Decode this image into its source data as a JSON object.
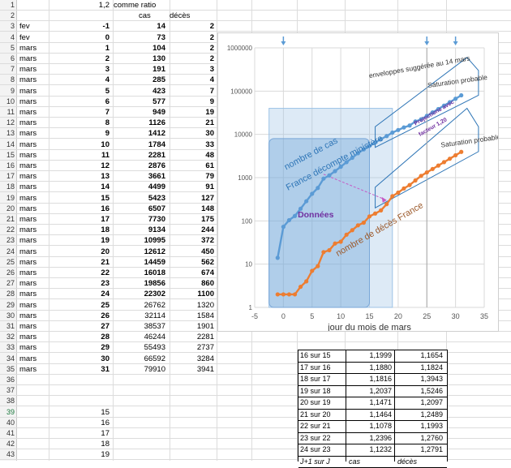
{
  "sheet": {
    "header_row": {
      "ratio_value": "1,2",
      "ratio_label": "comme ratio"
    },
    "col_headers": {
      "cas": "cas",
      "deces": "décès"
    },
    "rows": [
      {
        "month": "fev",
        "day": "-1",
        "cas": "14",
        "deces": "2"
      },
      {
        "month": "fev",
        "day": "0",
        "cas": "73",
        "deces": "2"
      },
      {
        "month": "mars",
        "day": "1",
        "cas": "104",
        "deces": "2"
      },
      {
        "month": "mars",
        "day": "2",
        "cas": "130",
        "deces": "2"
      },
      {
        "month": "mars",
        "day": "3",
        "cas": "191",
        "deces": "3"
      },
      {
        "month": "mars",
        "day": "4",
        "cas": "285",
        "deces": "4"
      },
      {
        "month": "mars",
        "day": "5",
        "cas": "423",
        "deces": "7"
      },
      {
        "month": "mars",
        "day": "6",
        "cas": "577",
        "deces": "9"
      },
      {
        "month": "mars",
        "day": "7",
        "cas": "949",
        "deces": "19"
      },
      {
        "month": "mars",
        "day": "8",
        "cas": "1126",
        "deces": "21"
      },
      {
        "month": "mars",
        "day": "9",
        "cas": "1412",
        "deces": "30"
      },
      {
        "month": "mars",
        "day": "10",
        "cas": "1784",
        "deces": "33"
      },
      {
        "month": "mars",
        "day": "11",
        "cas": "2281",
        "deces": "48"
      },
      {
        "month": "mars",
        "day": "12",
        "cas": "2876",
        "deces": "61"
      },
      {
        "month": "mars",
        "day": "13",
        "cas": "3661",
        "deces": "79"
      },
      {
        "month": "mars",
        "day": "14",
        "cas": "4499",
        "deces": "91"
      },
      {
        "month": "mars",
        "day": "15",
        "cas": "5423",
        "deces": "127"
      },
      {
        "month": "mars",
        "day": "16",
        "cas": "6507",
        "deces": "148"
      },
      {
        "month": "mars",
        "day": "17",
        "cas": "7730",
        "deces": "175"
      },
      {
        "month": "mars",
        "day": "18",
        "cas": "9134",
        "deces": "244"
      },
      {
        "month": "mars",
        "day": "19",
        "cas": "10995",
        "deces": "372"
      },
      {
        "month": "mars",
        "day": "20",
        "cas": "12612",
        "deces": "450"
      },
      {
        "month": "mars",
        "day": "21",
        "cas": "14459",
        "deces": "562"
      },
      {
        "month": "mars",
        "day": "22",
        "cas": "16018",
        "deces": "674"
      },
      {
        "month": "mars",
        "day": "23",
        "cas": "19856",
        "deces": "860"
      },
      {
        "month": "mars",
        "day": "24",
        "cas": "22302",
        "deces": "1100"
      },
      {
        "month": "mars",
        "day": "25",
        "cas": "26762",
        "deces": "1320"
      },
      {
        "month": "mars",
        "day": "26",
        "cas": "32114",
        "deces": "1584"
      },
      {
        "month": "mars",
        "day": "27",
        "cas": "38537",
        "deces": "1901"
      },
      {
        "month": "mars",
        "day": "28",
        "cas": "46244",
        "deces": "2281"
      },
      {
        "month": "mars",
        "day": "29",
        "cas": "55493",
        "deces": "2737"
      },
      {
        "month": "mars",
        "day": "30",
        "cas": "66592",
        "deces": "3284"
      },
      {
        "month": "mars",
        "day": "31",
        "cas": "79910",
        "deces": "3941"
      }
    ],
    "bold_through_index": 25,
    "tail_days": [
      "15",
      "16",
      "17",
      "18",
      "19"
    ],
    "selected_row": 39
  },
  "ratio_table": {
    "rows": [
      {
        "label": "16 sur 15",
        "cas": "1,1999",
        "deces": "1,1654"
      },
      {
        "label": "17 sur 16",
        "cas": "1,1880",
        "deces": "1,1824"
      },
      {
        "label": "18 sur 17",
        "cas": "1,1816",
        "deces": "1,3943"
      },
      {
        "label": "19 sur 18",
        "cas": "1,2037",
        "deces": "1,5246"
      },
      {
        "label": "20 sur 19",
        "cas": "1,1471",
        "deces": "1,2097"
      },
      {
        "label": "21 sur 20",
        "cas": "1,1464",
        "deces": "1,2489"
      },
      {
        "label": "22 sur 21",
        "cas": "1,1078",
        "deces": "1,1993"
      },
      {
        "label": "23 sur 22",
        "cas": "1,2396",
        "deces": "1,2760"
      },
      {
        "label": "24 sur 23",
        "cas": "1,1232",
        "deces": "1,2791"
      }
    ],
    "footer": {
      "label": "J+1 sur J",
      "cas": "cas",
      "deces": "décès"
    }
  },
  "chart_data": {
    "type": "line",
    "xlabel": "jour du mois de mars",
    "ylabel": "",
    "yscale": "log",
    "xlim": [
      -5,
      35
    ],
    "ylim": [
      1,
      1000000
    ],
    "x_ticks": [
      "-5",
      "0",
      "5",
      "10",
      "15",
      "20",
      "25",
      "30",
      "35"
    ],
    "y_ticks": [
      "1",
      "10",
      "100",
      "1000",
      "10000",
      "100000",
      "1000000"
    ],
    "grid": true,
    "series": [
      {
        "name": "nombre de cas France décompte ministère",
        "color": "#5b9bd5",
        "x": [
          -1,
          0,
          1,
          2,
          3,
          4,
          5,
          6,
          7,
          8,
          9,
          10,
          11,
          12,
          13,
          14,
          15,
          16,
          17,
          18,
          19,
          20,
          21,
          22,
          23,
          24,
          25,
          26,
          27,
          28,
          29,
          30,
          31
        ],
        "values": [
          14,
          73,
          104,
          130,
          191,
          285,
          423,
          577,
          949,
          1126,
          1412,
          1784,
          2281,
          2876,
          3661,
          4499,
          5423,
          6507,
          7730,
          9134,
          10995,
          12612,
          14459,
          16018,
          19856,
          22302,
          26762,
          32114,
          38537,
          46244,
          55493,
          66592,
          79910
        ]
      },
      {
        "name": "nombre de décès France",
        "color": "#ed7d31",
        "x": [
          -1,
          0,
          1,
          2,
          3,
          4,
          5,
          6,
          7,
          8,
          9,
          10,
          11,
          12,
          13,
          14,
          15,
          16,
          17,
          18,
          19,
          20,
          21,
          22,
          23,
          24,
          25,
          26,
          27,
          28,
          29,
          30,
          31
        ],
        "values": [
          2,
          2,
          2,
          2,
          3,
          4,
          7,
          9,
          19,
          21,
          30,
          33,
          48,
          61,
          79,
          91,
          127,
          148,
          175,
          244,
          372,
          450,
          562,
          674,
          860,
          1100,
          1320,
          1584,
          1901,
          2281,
          2737,
          3284,
          3941
        ]
      }
    ],
    "annotations": {
      "cas_label": "nombre de cas",
      "cas_label2": "France décompte ministère",
      "deces_label": "nombre de décès France",
      "donnees": "Données",
      "enveloppes": "enveloppes suggérée au 14 mars",
      "saturation1": "Saturation probable",
      "saturation2": "Saturation probable",
      "projections1": "Projections avec",
      "projections2": "facteur 1,20"
    },
    "markers_x": [
      0,
      25,
      30
    ]
  }
}
